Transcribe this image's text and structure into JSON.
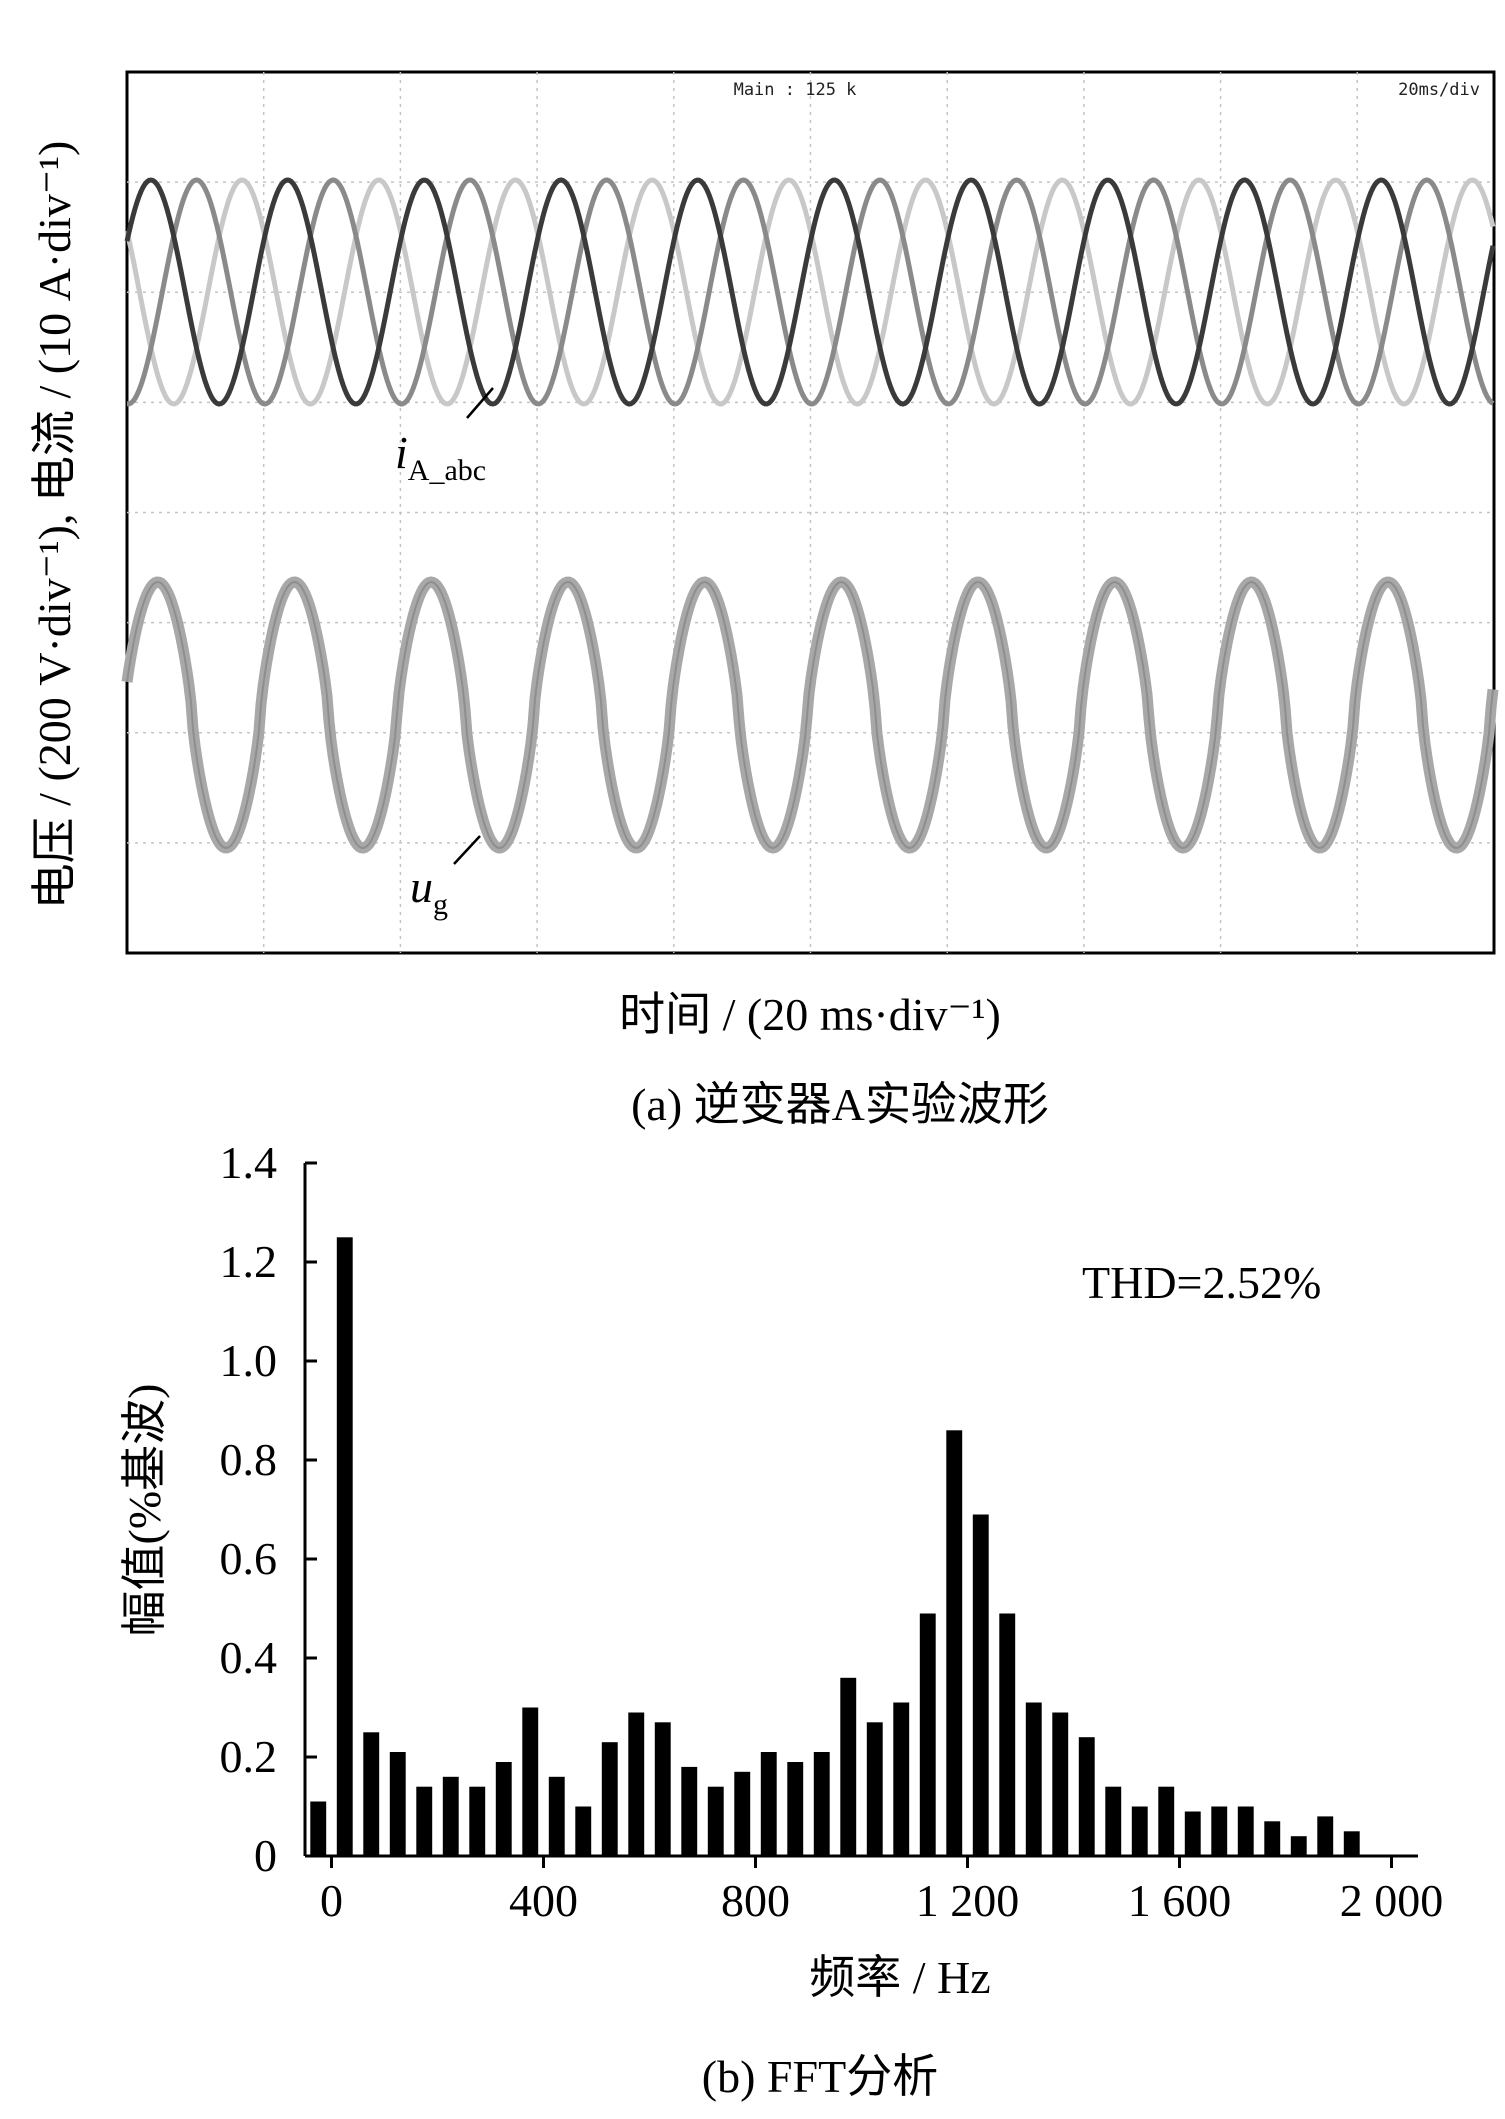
{
  "chart_data": [
    {
      "type": "line",
      "panel_caption": "(a)  逆变器A实验波形",
      "ylabel": "电压 / (200 V·div⁻¹), 电流 / (10 A·div⁻¹)",
      "xlabel": "时间 / (20 ms·div⁻¹)",
      "scope_header_main": "Main : 125 k",
      "scope_header_timebase": "20ms/div",
      "grid": true,
      "divisions": {
        "x": 10,
        "y": 8
      },
      "series": [
        {
          "name": "i_A_abc",
          "label_main": "i",
          "label_sub": "A_abc",
          "phases": 3,
          "frequency_hz": 50,
          "colors": [
            "#3a3a3a",
            "#8a8a8a",
            "#c8c8c8"
          ]
        },
        {
          "name": "u_g",
          "label_main": "u",
          "label_sub": "g",
          "frequency_hz": 50,
          "color": "#a8a8a8"
        }
      ]
    },
    {
      "type": "bar",
      "panel_caption": "(b)  FFT分析",
      "ylabel": "幅值(%基波)",
      "xlabel": "频率 / Hz",
      "annotation": "THD=2.52%",
      "ylim": [
        0,
        1.4
      ],
      "xlim": [
        -50,
        2050
      ],
      "yticks": [
        0,
        0.2,
        0.4,
        0.6,
        0.8,
        1.0,
        1.2,
        1.4
      ],
      "ytick_labels": [
        "0",
        "0.2",
        "0.4",
        "0.6",
        "0.8",
        "1.0",
        "1.2",
        "1.4"
      ],
      "xticks": [
        0,
        400,
        800,
        1200,
        1600,
        2000
      ],
      "xtick_labels": [
        "0",
        "400",
        "800",
        "1 200",
        "1 600",
        "2 000"
      ],
      "bar_color": "#000000",
      "x": [
        -25,
        25,
        75,
        125,
        175,
        225,
        275,
        325,
        375,
        425,
        475,
        525,
        575,
        625,
        675,
        725,
        775,
        825,
        875,
        925,
        975,
        1025,
        1075,
        1125,
        1175,
        1225,
        1275,
        1325,
        1375,
        1425,
        1475,
        1525,
        1575,
        1625,
        1675,
        1725,
        1775,
        1825,
        1875,
        1925
      ],
      "values": [
        0.11,
        1.25,
        0.25,
        0.21,
        0.14,
        0.16,
        0.14,
        0.19,
        0.3,
        0.16,
        0.1,
        0.23,
        0.29,
        0.27,
        0.18,
        0.14,
        0.17,
        0.21,
        0.19,
        0.21,
        0.36,
        0.27,
        0.31,
        0.49,
        0.86,
        0.69,
        0.49,
        0.31,
        0.29,
        0.24,
        0.14,
        0.1,
        0.14,
        0.09,
        0.1,
        0.1,
        0.07,
        0.04,
        0.08,
        0.05
      ]
    }
  ]
}
